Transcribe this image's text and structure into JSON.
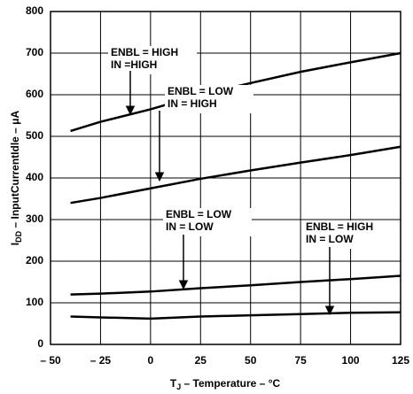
{
  "chart_data": {
    "type": "line",
    "xlabel_parts": [
      "T",
      "J",
      " – Temperature – °C"
    ],
    "ylabel_parts": [
      "I",
      "DD",
      " – InputCurrentIdle – μA"
    ],
    "x": [
      -40,
      -25,
      0,
      25,
      50,
      75,
      100,
      125
    ],
    "series": [
      {
        "name": "ENBL = HIGH, IN =HIGH",
        "color": "#000000",
        "values": [
          513,
          535,
          565,
          600,
          628,
          655,
          678,
          700
        ]
      },
      {
        "name": "ENBL = LOW, IN = HIGH",
        "color": "#000000",
        "values": [
          340,
          352,
          375,
          398,
          418,
          437,
          455,
          475
        ]
      },
      {
        "name": "ENBL = LOW, IN = LOW",
        "color": "#000000",
        "values": [
          120,
          122,
          127,
          135,
          142,
          150,
          157,
          165
        ]
      },
      {
        "name": "ENBL = HIGH, IN = LOW",
        "color": "#000000",
        "values": [
          67,
          65,
          62,
          67,
          70,
          73,
          76,
          77
        ]
      }
    ],
    "annotations": [
      [
        "ENBL = HIGH",
        "IN =HIGH"
      ],
      [
        "ENBL = LOW",
        "IN = HIGH"
      ],
      [
        "ENBL = LOW",
        "IN = LOW"
      ],
      [
        "ENBL = HIGH",
        "IN = LOW"
      ]
    ],
    "xlim": [
      -50,
      125
    ],
    "xticks": [
      {
        "value": -50,
        "label": "– 50"
      },
      {
        "value": -25,
        "label": "– 25"
      },
      0,
      25,
      50,
      75,
      100,
      125
    ],
    "ylim": [
      0,
      800
    ],
    "yticks": [
      0,
      100,
      200,
      300,
      400,
      500,
      600,
      700,
      800
    ],
    "grid": true
  }
}
